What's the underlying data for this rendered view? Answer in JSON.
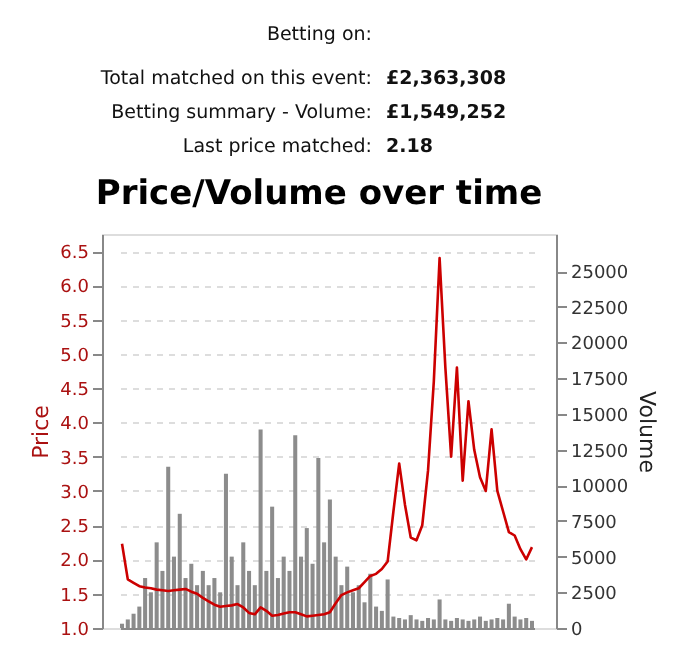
{
  "chart_data": {
    "type": "line",
    "title": "Price/Volume over time",
    "annotations": [
      "Betting on:",
      "Total matched on this event:",
      "£2,363,308",
      "Betting summary - Volume:",
      "£1,549,252",
      "Last price matched:",
      "2.18"
    ],
    "ylabel": "Price",
    "y2label": "Volume",
    "categories": [
      null,
      null,
      null,
      null,
      null,
      null,
      null,
      null,
      null,
      null,
      null,
      null,
      null,
      null,
      null,
      null,
      null,
      null,
      null,
      null,
      null,
      null,
      null,
      null,
      null,
      null,
      null,
      null,
      null,
      null,
      null,
      null,
      null,
      null,
      null,
      null,
      null,
      null,
      null,
      null,
      null,
      null,
      null,
      null,
      null,
      null,
      null,
      null,
      null,
      null,
      null,
      null,
      null,
      null,
      null,
      null,
      null,
      null,
      null,
      null,
      null,
      null,
      null,
      null,
      null,
      null,
      null,
      null,
      null,
      null,
      null,
      null
    ],
    "ylim": [
      1.0,
      6.75
    ],
    "yticks": [
      {
        "value": 1,
        "label": "1.0"
      },
      1.5,
      {
        "value": 2,
        "label": "2.0"
      },
      2.5,
      {
        "value": 3,
        "label": "3.0"
      },
      3.5,
      {
        "value": 4,
        "label": "4.0"
      },
      4.5,
      {
        "value": 5,
        "label": "5.0"
      },
      5.5,
      {
        "value": 6,
        "label": "6.0"
      },
      6.5
    ],
    "y2lim": [
      0,
      27600
    ],
    "y2ticks": [
      0,
      2500,
      5000,
      7500,
      10000,
      12500,
      15000,
      17500,
      20000,
      22500,
      25000
    ],
    "grid": "y",
    "marker": "none",
    "line_style": "solid",
    "series": [
      {
        "type": "bar",
        "axis": "y2",
        "color": "#8c8c8c",
        "values": [
          300,
          600,
          1000,
          1500,
          3500,
          2500,
          6000,
          4000,
          11300,
          5000,
          8000,
          3500,
          4500,
          3000,
          4000,
          3000,
          3500,
          2500,
          10800,
          5000,
          3000,
          6000,
          4000,
          3000,
          13900,
          4000,
          8500,
          3500,
          5000,
          4000,
          13500,
          5000,
          7000,
          4500,
          11900,
          6000,
          9000,
          5000,
          3000,
          4300,
          2500,
          3000,
          1800,
          3800,
          1500,
          1200,
          3400,
          800,
          700,
          600,
          900,
          600,
          500,
          700,
          600,
          2000,
          600,
          500,
          700,
          600,
          500,
          600,
          800,
          500,
          600,
          700,
          600,
          1700,
          800,
          600,
          700,
          500
        ]
      },
      {
        "axis": "y",
        "color": "#cc0000",
        "values": [
          2.23,
          1.71,
          1.66,
          1.61,
          1.59,
          1.58,
          1.56,
          1.55,
          1.54,
          1.55,
          1.56,
          1.57,
          1.53,
          1.5,
          1.44,
          1.39,
          1.34,
          1.31,
          1.32,
          1.33,
          1.35,
          1.3,
          1.22,
          1.2,
          1.3,
          1.25,
          1.18,
          1.19,
          1.21,
          1.23,
          1.23,
          1.2,
          1.17,
          1.18,
          1.19,
          1.2,
          1.23,
          1.36,
          1.48,
          1.52,
          1.55,
          1.58,
          1.67,
          1.76,
          1.79,
          1.86,
          1.97,
          2.7,
          3.4,
          2.8,
          2.32,
          2.28,
          2.5,
          3.3,
          4.6,
          6.4,
          4.8,
          3.5,
          4.8,
          3.15,
          4.31,
          3.6,
          3.2,
          3.0,
          3.9,
          3.0,
          2.7,
          2.4,
          2.35,
          2.15,
          2.0,
          2.18
        ]
      }
    ]
  }
}
